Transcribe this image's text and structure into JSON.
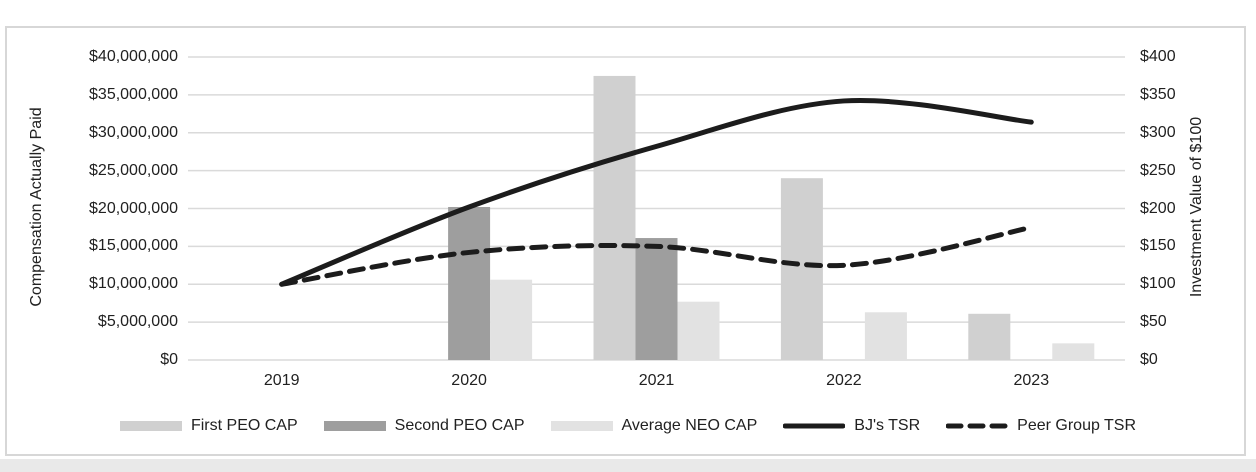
{
  "page": {
    "background": "#ffffff",
    "frame_border_color": "#d7d7d7",
    "text_color": "#212121",
    "gridline_color": "#dadada"
  },
  "chart_data": {
    "type": "combo-bar-line",
    "title": "",
    "categories": [
      "2019",
      "2020",
      "2021",
      "2022",
      "2023"
    ],
    "bar_series": [
      {
        "name": "First PEO CAP",
        "color": "#d0d0d0",
        "axis": "left",
        "values": [
          null,
          null,
          37500000,
          24000000,
          6100000
        ]
      },
      {
        "name": "Second PEO CAP",
        "color": "#9e9e9e",
        "axis": "left",
        "values": [
          null,
          20200000,
          16100000,
          null,
          null
        ]
      },
      {
        "name": "Average NEO CAP",
        "color": "#e2e2e2",
        "axis": "left",
        "values": [
          null,
          10600000,
          7700000,
          6300000,
          2200000
        ]
      }
    ],
    "line_series": [
      {
        "name": "BJ's TSR",
        "style": "solid",
        "color": "#1c1c1c",
        "axis": "right",
        "values": [
          100,
          202,
          282,
          342,
          314
        ]
      },
      {
        "name": "Peer Group TSR",
        "style": "dashed",
        "color": "#1c1c1c",
        "axis": "right",
        "values": [
          100,
          142,
          150,
          125,
          175
        ]
      }
    ],
    "left_axis": {
      "title": "Compensation Actually Paid",
      "min": 0,
      "max": 40000000,
      "tick_step": 5000000,
      "tick_labels": [
        "$0",
        "$5,000,000",
        "$10,000,000",
        "$15,000,000",
        "$20,000,000",
        "$25,000,000",
        "$30,000,000",
        "$35,000,000",
        "$40,000,000"
      ]
    },
    "right_axis": {
      "title": "Investment Value of $100",
      "min": 0,
      "max": 400,
      "tick_step": 50,
      "tick_labels": [
        "$0",
        "$50",
        "$100",
        "$150",
        "$200",
        "$250",
        "$300",
        "$350",
        "$400"
      ]
    },
    "grid": true,
    "legend_position": "bottom"
  }
}
